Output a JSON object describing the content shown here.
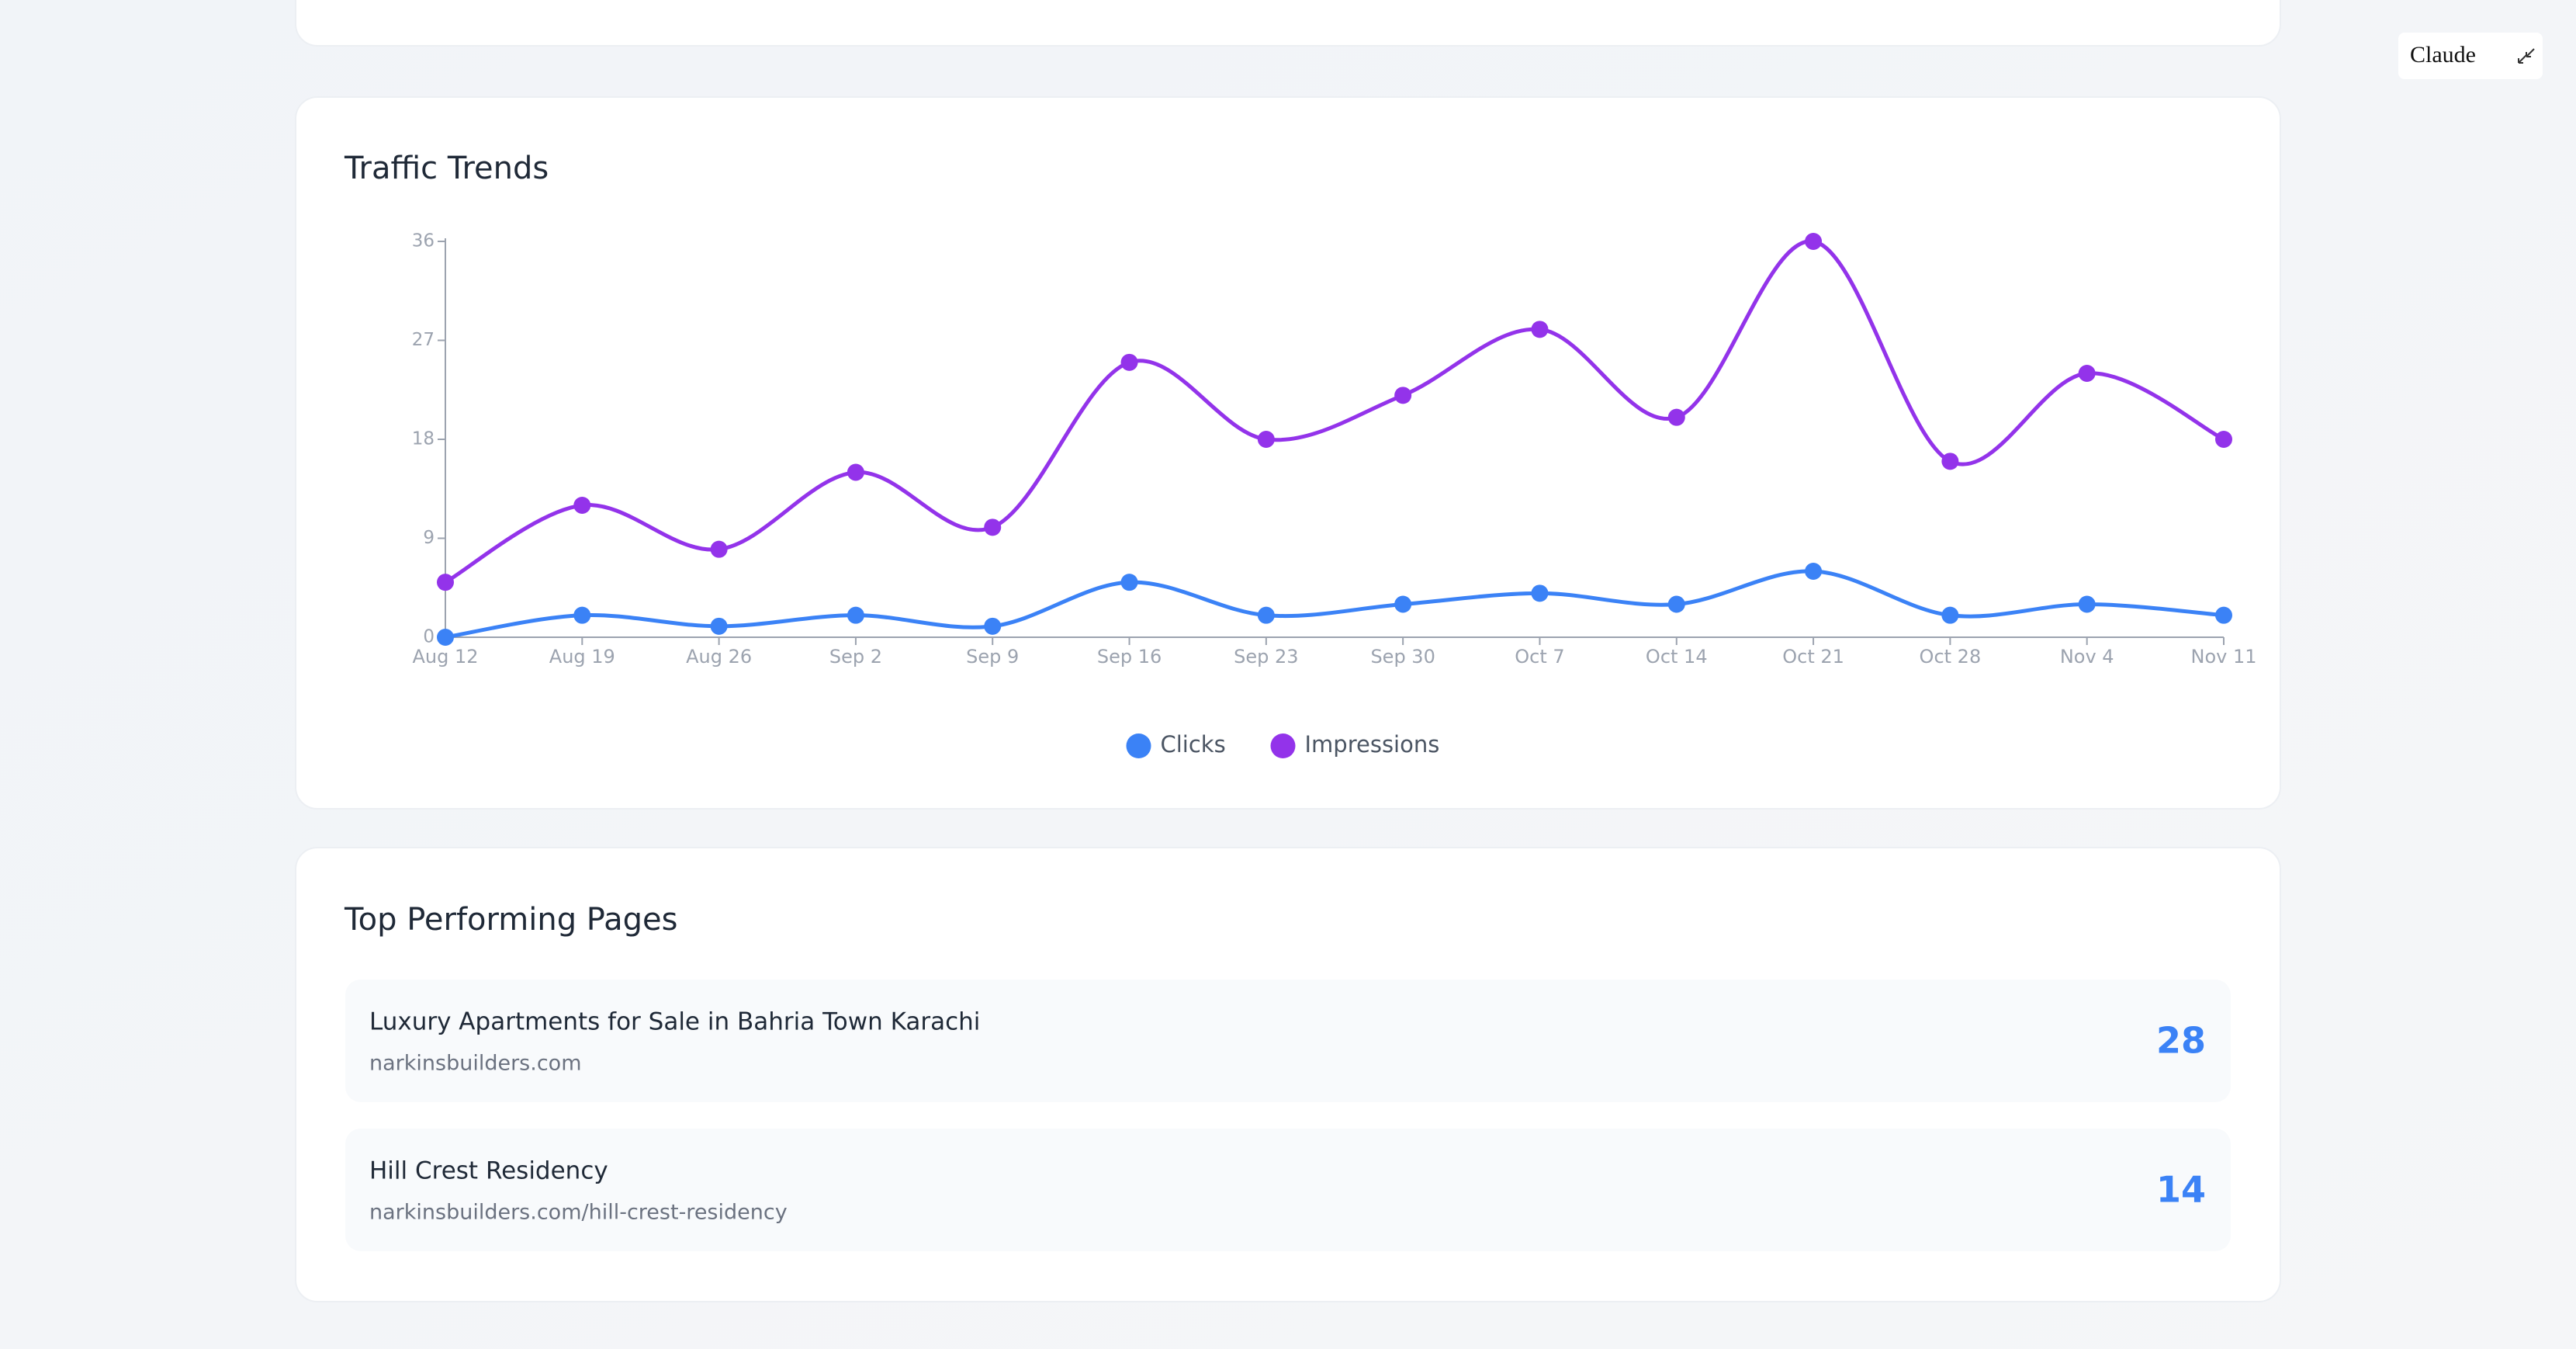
{
  "chart_data": {
    "type": "line",
    "title": "Traffic Trends",
    "categories": [
      "Aug 12",
      "Aug 19",
      "Aug 26",
      "Sep 2",
      "Sep 9",
      "Sep 16",
      "Sep 23",
      "Sep 30",
      "Oct 7",
      "Oct 14",
      "Oct 21",
      "Oct 28",
      "Nov 4",
      "Nov 11"
    ],
    "series": [
      {
        "name": "Clicks",
        "color": "#3b82f6",
        "values": [
          0,
          2,
          1,
          2,
          1,
          5,
          2,
          3,
          4,
          3,
          6,
          2,
          3,
          2
        ]
      },
      {
        "name": "Impressions",
        "color": "#9333ea",
        "values": [
          5,
          12,
          8,
          15,
          10,
          25,
          18,
          22,
          28,
          20,
          36,
          16,
          24,
          18
        ]
      }
    ],
    "ylim": [
      0,
      36
    ],
    "yticks": [
      0,
      9,
      18,
      27,
      36
    ],
    "grid": false,
    "legend": "bottom"
  },
  "top_pages": {
    "title": "Top Performing Pages",
    "items": [
      {
        "title": "Luxury Apartments for Sale in Bahria Town Karachi",
        "url": "narkinsbuilders.com",
        "count": 28
      },
      {
        "title": "Hill Crest Residency",
        "url": "narkinsbuilders.com/hill-crest-residency",
        "count": 14
      }
    ]
  },
  "widget": {
    "label": "Claude"
  }
}
